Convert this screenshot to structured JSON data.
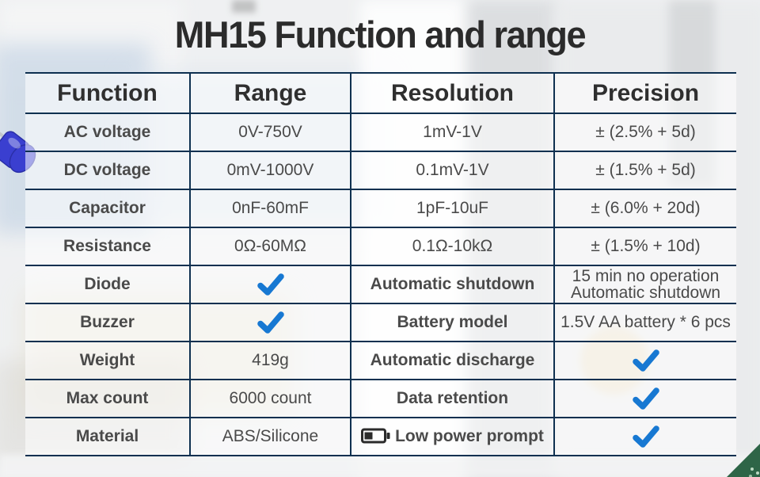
{
  "title": "MH15 Function and range",
  "table": {
    "headers": [
      "Function",
      "Range",
      "Resolution",
      "Precision"
    ],
    "rows": [
      {
        "function": {
          "t": "AC voltage"
        },
        "range": {
          "t": "0V-750V"
        },
        "resolution": {
          "t": "1mV-1V"
        },
        "precision": {
          "t": "± (2.5% + 5d)"
        }
      },
      {
        "function": {
          "t": "DC voltage"
        },
        "range": {
          "t": "0mV-1000V"
        },
        "resolution": {
          "t": "0.1mV-1V"
        },
        "precision": {
          "t": "± (1.5% + 5d)"
        }
      },
      {
        "function": {
          "t": "Capacitor"
        },
        "range": {
          "t": "0nF-60mF"
        },
        "resolution": {
          "t": "1pF-10uF"
        },
        "precision": {
          "t": "± (6.0% + 20d)"
        }
      },
      {
        "function": {
          "t": "Resistance"
        },
        "range": {
          "t": "0Ω-60MΩ"
        },
        "resolution": {
          "t": "0.1Ω-10kΩ"
        },
        "precision": {
          "t": "± (1.5% + 10d)"
        }
      },
      {
        "function": {
          "t": "Diode"
        },
        "range": {
          "check": true
        },
        "resolution": {
          "t": "Automatic shutdown",
          "b": true
        },
        "precision": {
          "lines": [
            "15 min no operation",
            "Automatic shutdown"
          ]
        }
      },
      {
        "function": {
          "t": "Buzzer"
        },
        "range": {
          "check": true
        },
        "resolution": {
          "t": "Battery model",
          "b": true
        },
        "precision": {
          "t": "1.5V AA battery * 6 pcs"
        }
      },
      {
        "function": {
          "t": "Weight"
        },
        "range": {
          "t": "419g"
        },
        "resolution": {
          "t": "Automatic discharge",
          "b": true
        },
        "precision": {
          "check": true
        }
      },
      {
        "function": {
          "t": "Max count"
        },
        "range": {
          "t": "6000 count"
        },
        "resolution": {
          "t": "Data retention",
          "b": true
        },
        "precision": {
          "check": true
        }
      },
      {
        "function": {
          "t": "Material"
        },
        "range": {
          "t": "ABS/Silicone"
        },
        "resolution": {
          "t": "Low power prompt",
          "b": true,
          "icon": "battery-low-icon"
        },
        "precision": {
          "check": true
        }
      }
    ]
  },
  "icons": {
    "check": "check-icon",
    "battery_low": "battery-low-icon",
    "led_photo": "blue-led-photo",
    "corner": "corner-ribbon"
  },
  "colors": {
    "grid_line": "#0e3050",
    "check_blue": "#1778d2",
    "title_text": "#2b2b2b",
    "body_text": "#4a4a4a",
    "bold_text": "#2d2d2d",
    "corner_green": "#2e6547",
    "led_blue": "#3a3fd0"
  }
}
